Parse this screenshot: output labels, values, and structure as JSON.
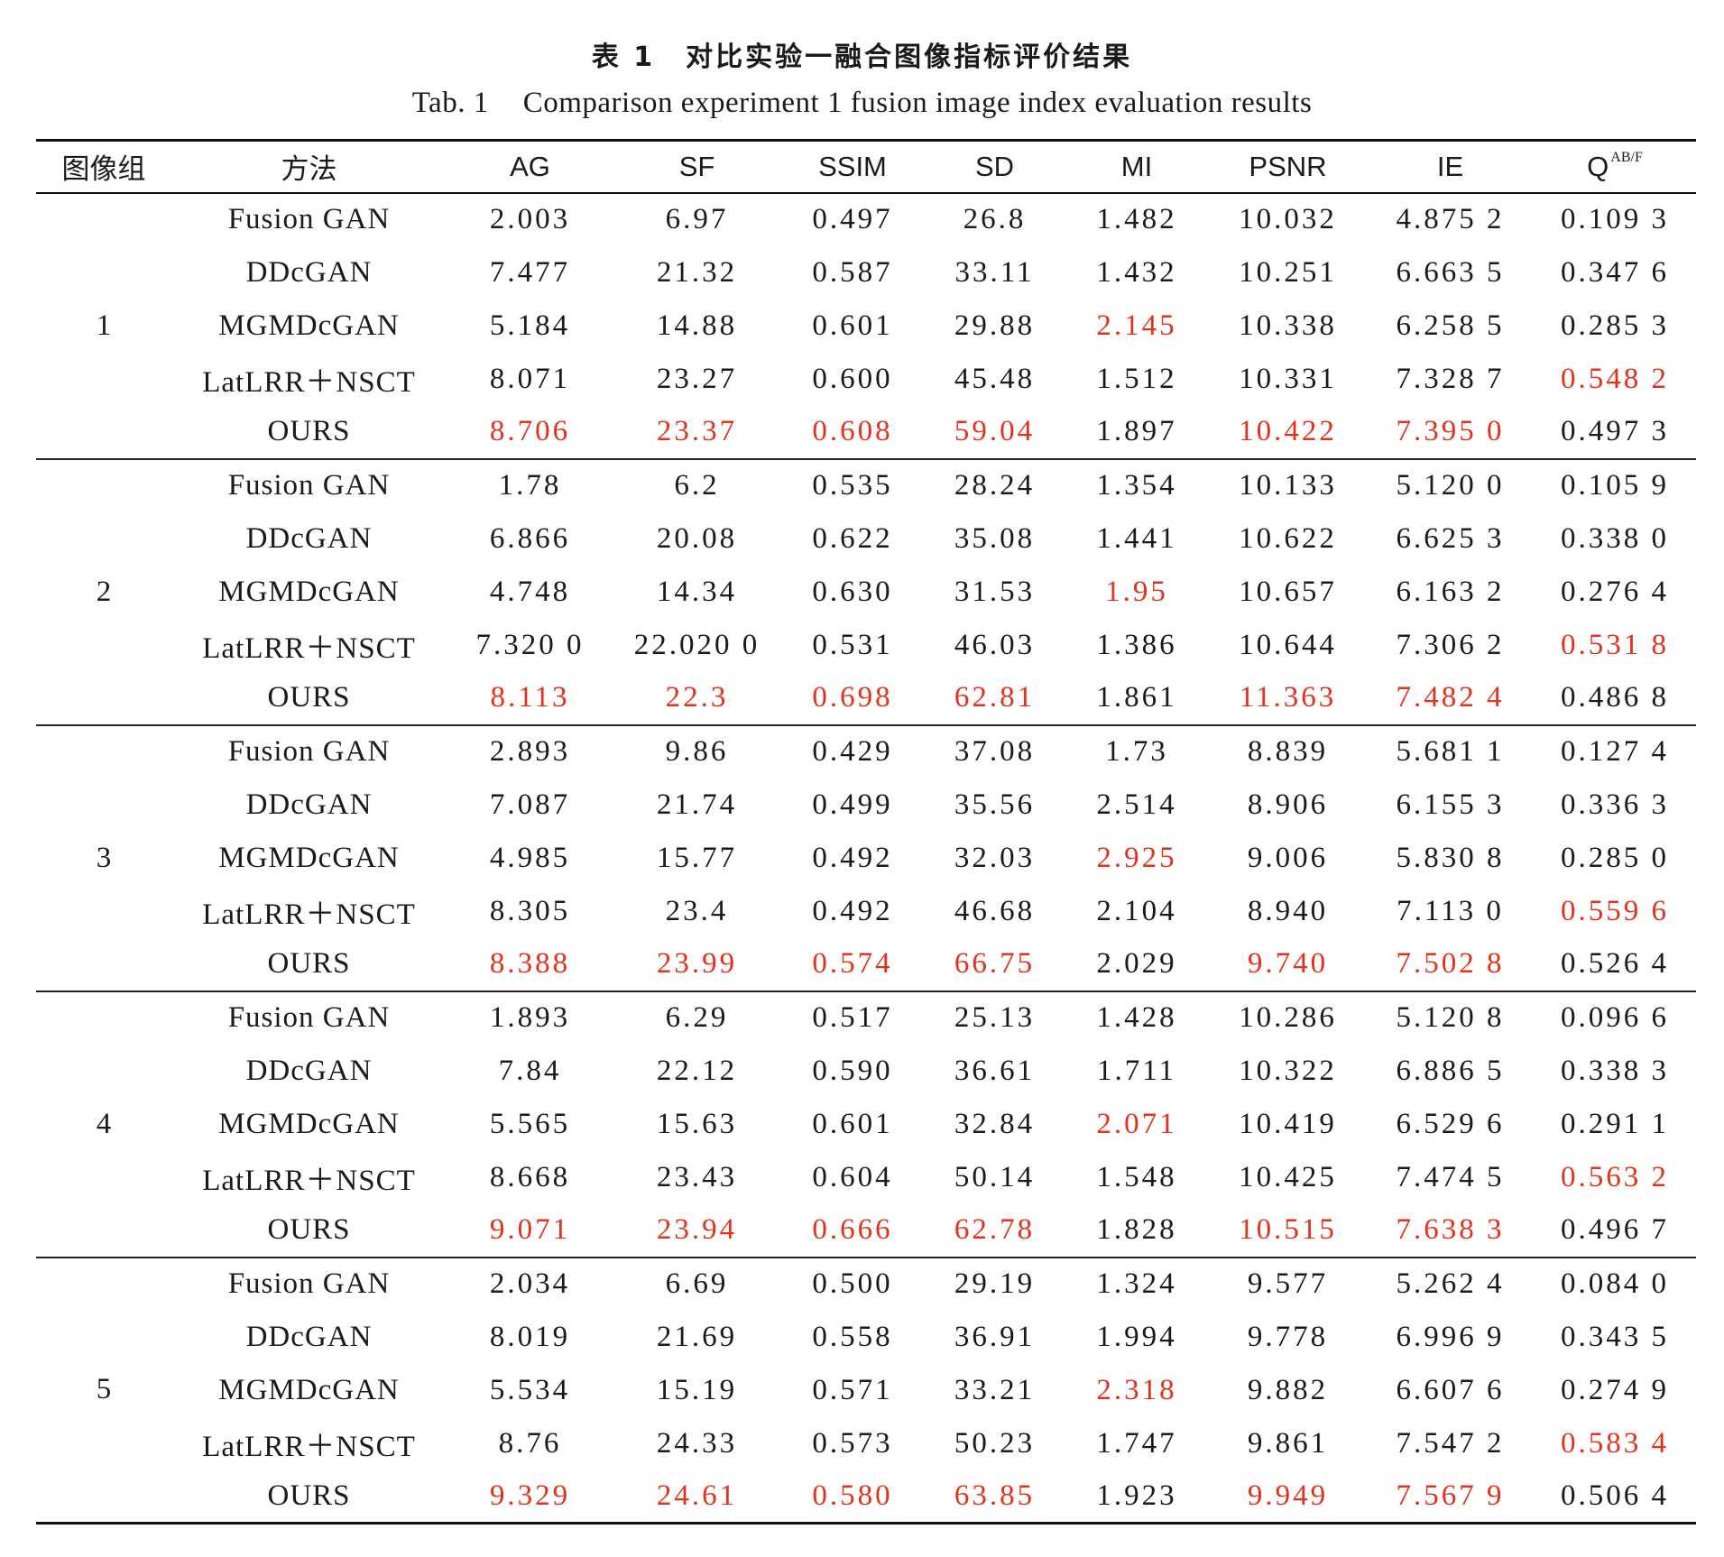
{
  "caption": {
    "cn_label": "表 1",
    "cn_title": "对比实验一融合图像指标评价结果",
    "en_label": "Tab. 1",
    "en_title": "Comparison experiment 1 fusion image index evaluation results"
  },
  "colors": {
    "best": "#e2321c",
    "text": "#1a1a1a"
  },
  "table": {
    "headers": {
      "group": "图像组",
      "method": "方法",
      "ag": "AG",
      "sf": "SF",
      "ssim": "SSIM",
      "sd": "SD",
      "mi": "MI",
      "psnr": "PSNR",
      "ie": "IE",
      "q": "Q",
      "q_sup": "AB/F"
    },
    "groups": [
      {
        "label": "1",
        "rows": [
          {
            "method": "Fusion GAN",
            "cells": [
              "2.003",
              "6.97",
              "0.497",
              "26.8",
              "1.482",
              "10.032",
              "4.875 2",
              "0.109 3"
            ],
            "best": [
              false,
              false,
              false,
              false,
              false,
              false,
              false,
              false
            ]
          },
          {
            "method": "DDcGAN",
            "cells": [
              "7.477",
              "21.32",
              "0.587",
              "33.11",
              "1.432",
              "10.251",
              "6.663 5",
              "0.347 6"
            ],
            "best": [
              false,
              false,
              false,
              false,
              false,
              false,
              false,
              false
            ]
          },
          {
            "method": "MGMDcGAN",
            "cells": [
              "5.184",
              "14.88",
              "0.601",
              "29.88",
              "2.145",
              "10.338",
              "6.258 5",
              "0.285 3"
            ],
            "best": [
              false,
              false,
              false,
              false,
              true,
              false,
              false,
              false
            ]
          },
          {
            "method": "LatLRR＋NSCT",
            "cells": [
              "8.071",
              "23.27",
              "0.600",
              "45.48",
              "1.512",
              "10.331",
              "7.328 7",
              "0.548 2"
            ],
            "best": [
              false,
              false,
              false,
              false,
              false,
              false,
              false,
              true
            ]
          },
          {
            "method": "OURS",
            "cells": [
              "8.706",
              "23.37",
              "0.608",
              "59.04",
              "1.897",
              "10.422",
              "7.395 0",
              "0.497 3"
            ],
            "best": [
              true,
              true,
              true,
              true,
              false,
              true,
              true,
              false
            ]
          }
        ]
      },
      {
        "label": "2",
        "rows": [
          {
            "method": "Fusion GAN",
            "cells": [
              "1.78",
              "6.2",
              "0.535",
              "28.24",
              "1.354",
              "10.133",
              "5.120 0",
              "0.105 9"
            ],
            "best": [
              false,
              false,
              false,
              false,
              false,
              false,
              false,
              false
            ]
          },
          {
            "method": "DDcGAN",
            "cells": [
              "6.866",
              "20.08",
              "0.622",
              "35.08",
              "1.441",
              "10.622",
              "6.625 3",
              "0.338 0"
            ],
            "best": [
              false,
              false,
              false,
              false,
              false,
              false,
              false,
              false
            ]
          },
          {
            "method": "MGMDcGAN",
            "cells": [
              "4.748",
              "14.34",
              "0.630",
              "31.53",
              "1.95",
              "10.657",
              "6.163 2",
              "0.276 4"
            ],
            "best": [
              false,
              false,
              false,
              false,
              true,
              false,
              false,
              false
            ]
          },
          {
            "method": "LatLRR＋NSCT",
            "cells": [
              "7.320 0",
              "22.020 0",
              "0.531",
              "46.03",
              "1.386",
              "10.644",
              "7.306 2",
              "0.531 8"
            ],
            "best": [
              false,
              false,
              false,
              false,
              false,
              false,
              false,
              true
            ]
          },
          {
            "method": "OURS",
            "cells": [
              "8.113",
              "22.3",
              "0.698",
              "62.81",
              "1.861",
              "11.363",
              "7.482 4",
              "0.486 8"
            ],
            "best": [
              true,
              true,
              true,
              true,
              false,
              true,
              true,
              false
            ]
          }
        ]
      },
      {
        "label": "3",
        "rows": [
          {
            "method": "Fusion GAN",
            "cells": [
              "2.893",
              "9.86",
              "0.429",
              "37.08",
              "1.73",
              "8.839",
              "5.681 1",
              "0.127 4"
            ],
            "best": [
              false,
              false,
              false,
              false,
              false,
              false,
              false,
              false
            ]
          },
          {
            "method": "DDcGAN",
            "cells": [
              "7.087",
              "21.74",
              "0.499",
              "35.56",
              "2.514",
              "8.906",
              "6.155 3",
              "0.336 3"
            ],
            "best": [
              false,
              false,
              false,
              false,
              false,
              false,
              false,
              false
            ]
          },
          {
            "method": "MGMDcGAN",
            "cells": [
              "4.985",
              "15.77",
              "0.492",
              "32.03",
              "2.925",
              "9.006",
              "5.830 8",
              "0.285 0"
            ],
            "best": [
              false,
              false,
              false,
              false,
              true,
              false,
              false,
              false
            ]
          },
          {
            "method": "LatLRR＋NSCT",
            "cells": [
              "8.305",
              "23.4",
              "0.492",
              "46.68",
              "2.104",
              "8.940",
              "7.113 0",
              "0.559 6"
            ],
            "best": [
              false,
              false,
              false,
              false,
              false,
              false,
              false,
              true
            ]
          },
          {
            "method": "OURS",
            "cells": [
              "8.388",
              "23.99",
              "0.574",
              "66.75",
              "2.029",
              "9.740",
              "7.502 8",
              "0.526 4"
            ],
            "best": [
              true,
              true,
              true,
              true,
              false,
              true,
              true,
              false
            ]
          }
        ]
      },
      {
        "label": "4",
        "rows": [
          {
            "method": "Fusion GAN",
            "cells": [
              "1.893",
              "6.29",
              "0.517",
              "25.13",
              "1.428",
              "10.286",
              "5.120 8",
              "0.096 6"
            ],
            "best": [
              false,
              false,
              false,
              false,
              false,
              false,
              false,
              false
            ]
          },
          {
            "method": "DDcGAN",
            "cells": [
              "7.84",
              "22.12",
              "0.590",
              "36.61",
              "1.711",
              "10.322",
              "6.886 5",
              "0.338 3"
            ],
            "best": [
              false,
              false,
              false,
              false,
              false,
              false,
              false,
              false
            ]
          },
          {
            "method": "MGMDcGAN",
            "cells": [
              "5.565",
              "15.63",
              "0.601",
              "32.84",
              "2.071",
              "10.419",
              "6.529 6",
              "0.291 1"
            ],
            "best": [
              false,
              false,
              false,
              false,
              true,
              false,
              false,
              false
            ]
          },
          {
            "method": "LatLRR＋NSCT",
            "cells": [
              "8.668",
              "23.43",
              "0.604",
              "50.14",
              "1.548",
              "10.425",
              "7.474 5",
              "0.563 2"
            ],
            "best": [
              false,
              false,
              false,
              false,
              false,
              false,
              false,
              true
            ]
          },
          {
            "method": "OURS",
            "cells": [
              "9.071",
              "23.94",
              "0.666",
              "62.78",
              "1.828",
              "10.515",
              "7.638 3",
              "0.496 7"
            ],
            "best": [
              true,
              true,
              true,
              true,
              false,
              true,
              true,
              false
            ]
          }
        ]
      },
      {
        "label": "5",
        "rows": [
          {
            "method": "Fusion GAN",
            "cells": [
              "2.034",
              "6.69",
              "0.500",
              "29.19",
              "1.324",
              "9.577",
              "5.262 4",
              "0.084 0"
            ],
            "best": [
              false,
              false,
              false,
              false,
              false,
              false,
              false,
              false
            ]
          },
          {
            "method": "DDcGAN",
            "cells": [
              "8.019",
              "21.69",
              "0.558",
              "36.91",
              "1.994",
              "9.778",
              "6.996 9",
              "0.343 5"
            ],
            "best": [
              false,
              false,
              false,
              false,
              false,
              false,
              false,
              false
            ]
          },
          {
            "method": "MGMDcGAN",
            "cells": [
              "5.534",
              "15.19",
              "0.571",
              "33.21",
              "2.318",
              "9.882",
              "6.607 6",
              "0.274 9"
            ],
            "best": [
              false,
              false,
              false,
              false,
              true,
              false,
              false,
              false
            ]
          },
          {
            "method": "LatLRR＋NSCT",
            "cells": [
              "8.76",
              "24.33",
              "0.573",
              "50.23",
              "1.747",
              "9.861",
              "7.547 2",
              "0.583 4"
            ],
            "best": [
              false,
              false,
              false,
              false,
              false,
              false,
              false,
              true
            ]
          },
          {
            "method": "OURS",
            "cells": [
              "9.329",
              "24.61",
              "0.580",
              "63.85",
              "1.923",
              "9.949",
              "7.567 9",
              "0.506 4"
            ],
            "best": [
              true,
              true,
              true,
              true,
              false,
              true,
              true,
              false
            ]
          }
        ]
      }
    ]
  }
}
